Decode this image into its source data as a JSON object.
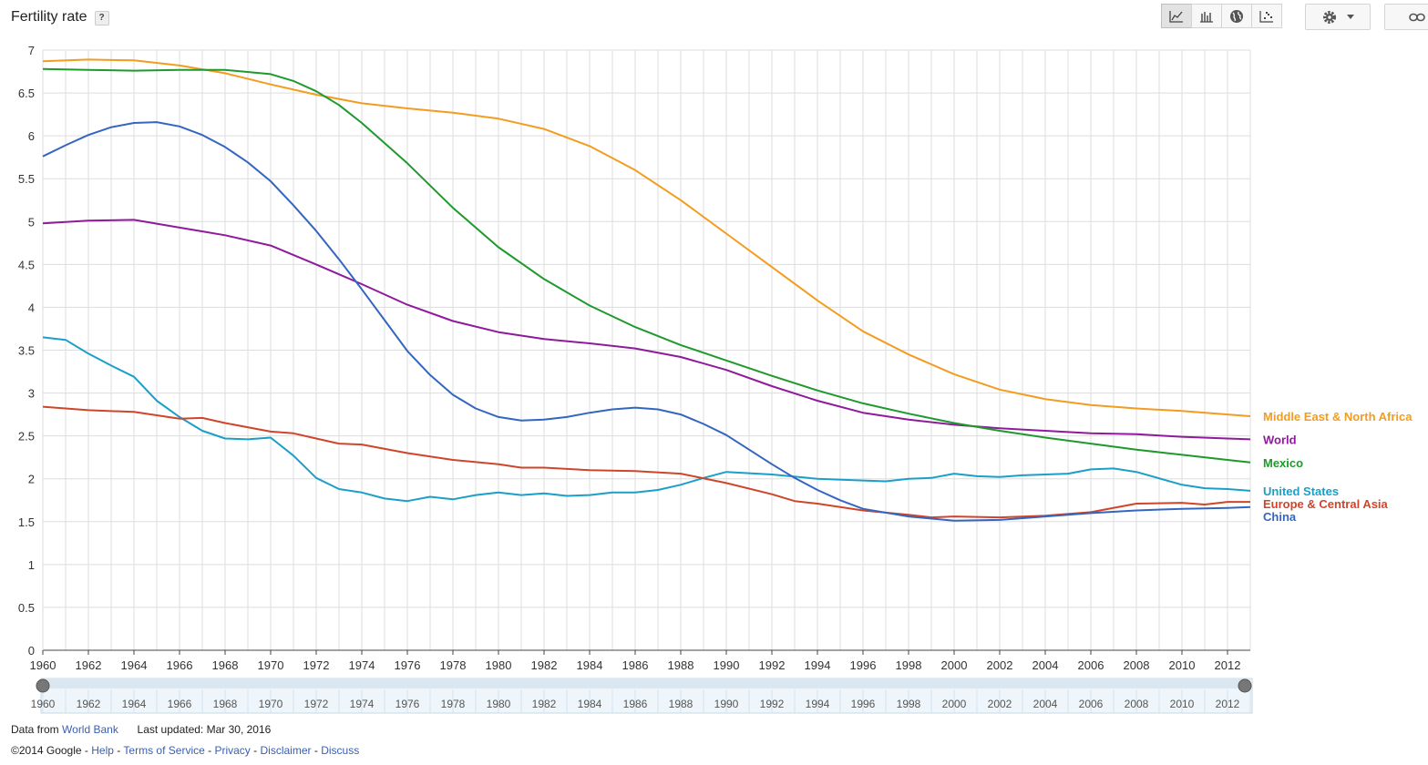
{
  "header": {
    "title": "Fertility rate",
    "help_label": "?"
  },
  "toolbar": {
    "buttons": [
      {
        "name": "line-chart-icon",
        "active": true
      },
      {
        "name": "bar-chart-icon",
        "active": false
      },
      {
        "name": "map-icon",
        "active": false
      },
      {
        "name": "scatter-chart-icon",
        "active": false
      }
    ]
  },
  "colors": {
    "grid": "#dddddd",
    "axis": "#444444",
    "link": "#3a5fb0"
  },
  "chart_data": {
    "type": "line",
    "title": "",
    "xlabel": "",
    "ylabel": "",
    "xlim": [
      1960,
      2013
    ],
    "ylim": [
      0,
      7
    ],
    "y_ticks": [
      0,
      0.5,
      1,
      1.5,
      2,
      2.5,
      3,
      3.5,
      4,
      4.5,
      5,
      5.5,
      6,
      6.5,
      7
    ],
    "y_tick_labels": [
      "0",
      "0.5",
      "1",
      "1.5",
      "2",
      "2.5",
      "3",
      "3.5",
      "4",
      "4.5",
      "5",
      "5.5",
      "6",
      "6.5",
      "7"
    ],
    "x_ticks": [
      1960,
      1962,
      1964,
      1966,
      1968,
      1970,
      1972,
      1974,
      1976,
      1978,
      1980,
      1982,
      1984,
      1986,
      1988,
      1990,
      1992,
      1994,
      1996,
      1998,
      2000,
      2002,
      2004,
      2006,
      2008,
      2010,
      2012
    ],
    "x_tick_labels": [
      "1960",
      "1962",
      "1964",
      "1966",
      "1968",
      "1970",
      "1972",
      "1974",
      "1976",
      "1978",
      "1980",
      "1982",
      "1984",
      "1986",
      "1988",
      "1990",
      "1992",
      "1994",
      "1996",
      "1998",
      "2000",
      "2002",
      "2004",
      "2006",
      "2008",
      "2010",
      "2012"
    ],
    "grid": true,
    "legend_position": "right-end-labels",
    "series": [
      {
        "name": "Middle East & North Africa",
        "color": "#f39c1f",
        "x": [
          1960,
          1962,
          1964,
          1966,
          1968,
          1970,
          1972,
          1974,
          1976,
          1978,
          1980,
          1982,
          1984,
          1986,
          1988,
          1990,
          1992,
          1994,
          1996,
          1998,
          2000,
          2002,
          2004,
          2006,
          2008,
          2010,
          2012,
          2013
        ],
        "y": [
          6.87,
          6.89,
          6.88,
          6.82,
          6.73,
          6.6,
          6.48,
          6.38,
          6.32,
          6.27,
          6.2,
          6.08,
          5.88,
          5.6,
          5.25,
          4.86,
          4.47,
          4.08,
          3.72,
          3.45,
          3.22,
          3.04,
          2.93,
          2.86,
          2.82,
          2.79,
          2.75,
          2.73
        ]
      },
      {
        "name": "World",
        "color": "#8f1a9c",
        "x": [
          1960,
          1962,
          1964,
          1966,
          1968,
          1970,
          1972,
          1974,
          1976,
          1978,
          1980,
          1982,
          1984,
          1986,
          1988,
          1990,
          1992,
          1994,
          1996,
          1998,
          2000,
          2002,
          2004,
          2006,
          2008,
          2010,
          2012,
          2013
        ],
        "y": [
          4.98,
          5.01,
          5.02,
          4.93,
          4.84,
          4.72,
          4.5,
          4.27,
          4.03,
          3.84,
          3.71,
          3.63,
          3.58,
          3.52,
          3.42,
          3.27,
          3.08,
          2.91,
          2.77,
          2.69,
          2.63,
          2.59,
          2.56,
          2.53,
          2.52,
          2.49,
          2.47,
          2.46
        ]
      },
      {
        "name": "Mexico",
        "color": "#1e9a2c",
        "x": [
          1960,
          1962,
          1964,
          1966,
          1968,
          1970,
          1971,
          1972,
          1973,
          1974,
          1976,
          1978,
          1980,
          1982,
          1984,
          1986,
          1988,
          1990,
          1992,
          1994,
          1996,
          1998,
          2000,
          2002,
          2004,
          2006,
          2008,
          2010,
          2012,
          2013
        ],
        "y": [
          6.78,
          6.77,
          6.76,
          6.77,
          6.77,
          6.72,
          6.64,
          6.52,
          6.36,
          6.15,
          5.68,
          5.16,
          4.7,
          4.33,
          4.02,
          3.77,
          3.56,
          3.38,
          3.2,
          3.03,
          2.88,
          2.76,
          2.65,
          2.56,
          2.48,
          2.41,
          2.34,
          2.28,
          2.22,
          2.19
        ]
      },
      {
        "name": "United States",
        "color": "#1aa0c8",
        "x": [
          1960,
          1961,
          1962,
          1963,
          1964,
          1965,
          1966,
          1967,
          1968,
          1969,
          1970,
          1971,
          1972,
          1973,
          1974,
          1975,
          1976,
          1977,
          1978,
          1979,
          1980,
          1981,
          1982,
          1983,
          1984,
          1985,
          1986,
          1987,
          1988,
          1989,
          1990,
          1992,
          1994,
          1996,
          1997,
          1998,
          1999,
          2000,
          2001,
          2002,
          2003,
          2005,
          2006,
          2007,
          2008,
          2010,
          2011,
          2012,
          2013
        ],
        "y": [
          3.65,
          3.62,
          3.46,
          3.32,
          3.19,
          2.91,
          2.72,
          2.56,
          2.47,
          2.46,
          2.48,
          2.27,
          2.01,
          1.88,
          1.84,
          1.77,
          1.74,
          1.79,
          1.76,
          1.81,
          1.84,
          1.81,
          1.83,
          1.8,
          1.81,
          1.84,
          1.84,
          1.87,
          1.93,
          2.01,
          2.08,
          2.05,
          2.0,
          1.98,
          1.97,
          2.0,
          2.01,
          2.06,
          2.03,
          2.02,
          2.04,
          2.06,
          2.11,
          2.12,
          2.08,
          1.93,
          1.89,
          1.88,
          1.86
        ]
      },
      {
        "name": "Europe & Central Asia",
        "color": "#d0452a",
        "x": [
          1960,
          1962,
          1964,
          1966,
          1967,
          1968,
          1970,
          1971,
          1972,
          1973,
          1974,
          1976,
          1978,
          1980,
          1981,
          1982,
          1984,
          1986,
          1988,
          1990,
          1992,
          1993,
          1994,
          1996,
          1998,
          1999,
          2000,
          2002,
          2004,
          2006,
          2008,
          2010,
          2011,
          2012,
          2013
        ],
        "y": [
          2.84,
          2.8,
          2.78,
          2.7,
          2.71,
          2.65,
          2.55,
          2.53,
          2.47,
          2.41,
          2.4,
          2.3,
          2.22,
          2.17,
          2.13,
          2.13,
          2.1,
          2.09,
          2.06,
          1.95,
          1.82,
          1.74,
          1.71,
          1.63,
          1.58,
          1.55,
          1.56,
          1.55,
          1.57,
          1.61,
          1.71,
          1.72,
          1.7,
          1.73,
          1.73
        ]
      },
      {
        "name": "China",
        "color": "#3466c0",
        "x": [
          1960,
          1961,
          1962,
          1963,
          1964,
          1965,
          1966,
          1967,
          1968,
          1969,
          1970,
          1971,
          1972,
          1973,
          1974,
          1975,
          1976,
          1977,
          1978,
          1979,
          1980,
          1981,
          1982,
          1983,
          1984,
          1985,
          1986,
          1987,
          1988,
          1989,
          1990,
          1991,
          1992,
          1993,
          1994,
          1995,
          1996,
          1998,
          2000,
          2002,
          2004,
          2006,
          2008,
          2010,
          2012,
          2013
        ],
        "y": [
          5.76,
          5.89,
          6.01,
          6.1,
          6.15,
          6.16,
          6.11,
          6.01,
          5.87,
          5.69,
          5.47,
          5.19,
          4.89,
          4.56,
          4.21,
          3.85,
          3.49,
          3.21,
          2.98,
          2.82,
          2.72,
          2.68,
          2.69,
          2.72,
          2.77,
          2.81,
          2.83,
          2.81,
          2.75,
          2.64,
          2.51,
          2.34,
          2.17,
          2.01,
          1.87,
          1.75,
          1.65,
          1.56,
          1.51,
          1.52,
          1.56,
          1.6,
          1.63,
          1.65,
          1.66,
          1.67
        ]
      }
    ]
  },
  "range_slider": {
    "start": 1960,
    "end": 2013
  },
  "footer": {
    "data_from_label": "Data from",
    "data_source": "World Bank",
    "updated_label": "Last updated: Mar 30, 2016",
    "copyright": "©2014 Google",
    "separator": "-",
    "links": [
      "Help",
      "Terms of Service",
      "Privacy",
      "Disclaimer",
      "Discuss"
    ]
  }
}
